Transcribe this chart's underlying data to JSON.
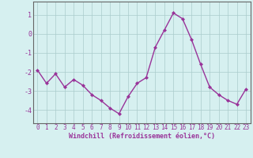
{
  "x": [
    0,
    1,
    2,
    3,
    4,
    5,
    6,
    7,
    8,
    9,
    10,
    11,
    12,
    13,
    14,
    15,
    16,
    17,
    18,
    19,
    20,
    21,
    22,
    23
  ],
  "y": [
    -1.9,
    -2.6,
    -2.1,
    -2.8,
    -2.4,
    -2.7,
    -3.2,
    -3.5,
    -3.9,
    -4.2,
    -3.3,
    -2.6,
    -2.3,
    -0.7,
    0.2,
    1.1,
    0.8,
    -0.3,
    -1.6,
    -2.8,
    -3.2,
    -3.5,
    -3.7,
    -2.9
  ],
  "line_color": "#993399",
  "marker": "D",
  "marker_size": 2.0,
  "bg_color": "#d6f0f0",
  "grid_color": "#aacccc",
  "xlabel": "Windchill (Refroidissement éolien,°C)",
  "xlabel_color": "#993399",
  "tick_color": "#993399",
  "ylim": [
    -4.7,
    1.7
  ],
  "yticks": [
    -4,
    -3,
    -2,
    -1,
    0,
    1
  ],
  "xticks": [
    0,
    1,
    2,
    3,
    4,
    5,
    6,
    7,
    8,
    9,
    10,
    11,
    12,
    13,
    14,
    15,
    16,
    17,
    18,
    19,
    20,
    21,
    22,
    23
  ],
  "spine_color": "#666666",
  "line_width": 1.0,
  "tick_fontsize": 5.5,
  "xlabel_fontsize": 6.0,
  "ytick_fontsize": 6.0
}
